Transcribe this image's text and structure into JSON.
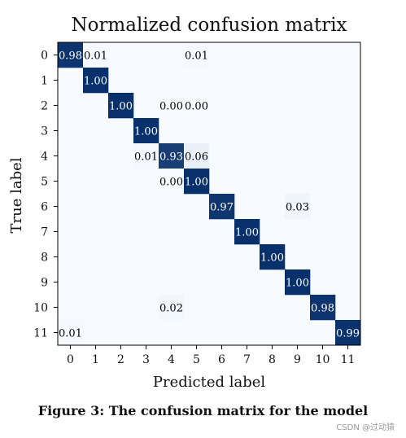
{
  "chart_data": {
    "type": "heatmap",
    "title": "Normalized confusion matrix",
    "xlabel": "Predicted label",
    "ylabel": "True label",
    "x_ticks": [
      "0",
      "1",
      "2",
      "3",
      "4",
      "5",
      "6",
      "7",
      "8",
      "9",
      "10",
      "11"
    ],
    "y_ticks": [
      "0",
      "1",
      "2",
      "3",
      "4",
      "5",
      "6",
      "7",
      "8",
      "9",
      "10",
      "11"
    ],
    "cells": [
      {
        "row": 0,
        "col": 0,
        "value": 0.98,
        "label": "0.98"
      },
      {
        "row": 0,
        "col": 1,
        "value": 0.01,
        "label": "0.01"
      },
      {
        "row": 0,
        "col": 5,
        "value": 0.01,
        "label": "0.01"
      },
      {
        "row": 1,
        "col": 1,
        "value": 1.0,
        "label": "1.00"
      },
      {
        "row": 2,
        "col": 2,
        "value": 1.0,
        "label": "1.00"
      },
      {
        "row": 2,
        "col": 4,
        "value": 0.0,
        "label": "0.00"
      },
      {
        "row": 2,
        "col": 5,
        "value": 0.0,
        "label": "0.00"
      },
      {
        "row": 3,
        "col": 3,
        "value": 1.0,
        "label": "1.00"
      },
      {
        "row": 4,
        "col": 3,
        "value": 0.01,
        "label": "0.01"
      },
      {
        "row": 4,
        "col": 4,
        "value": 0.93,
        "label": "0.93"
      },
      {
        "row": 4,
        "col": 5,
        "value": 0.06,
        "label": "0.06"
      },
      {
        "row": 5,
        "col": 4,
        "value": 0.0,
        "label": "0.00"
      },
      {
        "row": 5,
        "col": 5,
        "value": 1.0,
        "label": "1.00"
      },
      {
        "row": 6,
        "col": 6,
        "value": 0.97,
        "label": "0.97"
      },
      {
        "row": 6,
        "col": 9,
        "value": 0.03,
        "label": "0.03"
      },
      {
        "row": 7,
        "col": 7,
        "value": 1.0,
        "label": "1.00"
      },
      {
        "row": 8,
        "col": 8,
        "value": 1.0,
        "label": "1.00"
      },
      {
        "row": 9,
        "col": 9,
        "value": 1.0,
        "label": "1.00"
      },
      {
        "row": 10,
        "col": 4,
        "value": 0.02,
        "label": "0.02"
      },
      {
        "row": 10,
        "col": 10,
        "value": 0.98,
        "label": "0.98"
      },
      {
        "row": 11,
        "col": 0,
        "value": 0.01,
        "label": "0.01"
      },
      {
        "row": 11,
        "col": 11,
        "value": 0.99,
        "label": "0.99"
      }
    ],
    "value_range": [
      0,
      1
    ],
    "colormap": {
      "low": "#f7fbff",
      "high": "#08306b"
    },
    "grid": false
  },
  "caption": "Figure 3: The confusion matrix for the model",
  "watermark": "CSDN @过动猿"
}
